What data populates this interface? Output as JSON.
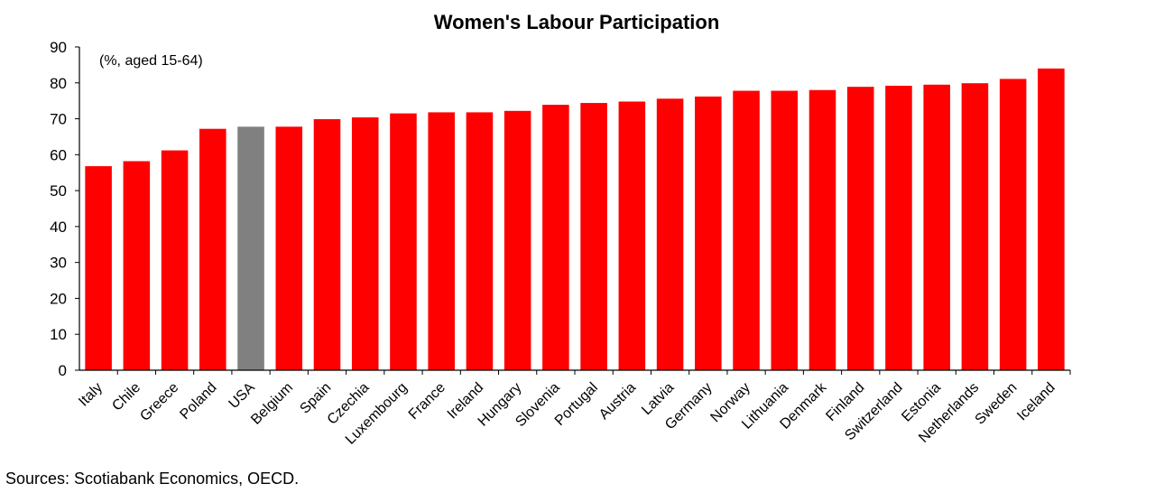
{
  "chart_data": {
    "type": "bar",
    "title": "Women's Labour Participation",
    "subtitle": "(%, aged 15-64)",
    "xlabel": "",
    "ylabel": "",
    "ylim": [
      0,
      90
    ],
    "yticks": [
      0,
      10,
      20,
      30,
      40,
      50,
      60,
      70,
      80,
      90
    ],
    "grid": false,
    "categories": [
      "Italy",
      "Chile",
      "Greece",
      "Poland",
      "USA",
      "Belgium",
      "Spain",
      "Czechia",
      "Luxembourg",
      "France",
      "Ireland",
      "Hungary",
      "Slovenia",
      "Portugal",
      "Austria",
      "Latvia",
      "Germany",
      "Norway",
      "Lithuania",
      "Denmark",
      "Finland",
      "Switzerland",
      "Estonia",
      "Netherlands",
      "Sweden",
      "Iceland"
    ],
    "values": [
      56.8,
      58.2,
      61.2,
      67.2,
      67.8,
      67.8,
      69.9,
      70.4,
      71.5,
      71.8,
      71.8,
      72.2,
      73.9,
      74.4,
      74.8,
      75.6,
      76.2,
      77.8,
      77.8,
      78.0,
      78.9,
      79.2,
      79.5,
      79.9,
      81.1,
      84.0
    ],
    "colors": {
      "default": "#ff0000",
      "highlight": "#808080"
    },
    "highlight_category": "USA"
  },
  "footer": {
    "source": "Sources: Scotiabank Economics, OECD."
  }
}
